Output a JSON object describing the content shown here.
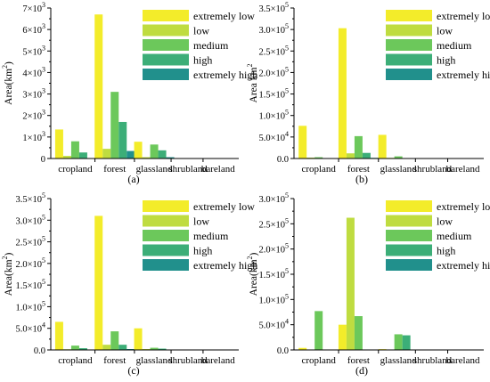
{
  "legend": {
    "labels": [
      "extremely low",
      "low",
      "medium",
      "high",
      "extremely high"
    ],
    "colors": [
      "#f3ec2a",
      "#bfdc40",
      "#6cc85b",
      "#3cae78",
      "#21908c"
    ]
  },
  "chart_data": [
    {
      "type": "bar",
      "panel_label": "(a)",
      "ylabel": "Area(km",
      "ylabel_exp": "2",
      "ylabel_close": ")",
      "ylim": [
        0,
        7000
      ],
      "yticks": [
        0,
        1000,
        2000,
        3000,
        4000,
        5000,
        6000,
        7000
      ],
      "ytick_labels": [
        {
          "base": "0",
          "exp": ""
        },
        {
          "base": "1×10",
          "exp": "3"
        },
        {
          "base": "2×10",
          "exp": "3"
        },
        {
          "base": "3×10",
          "exp": "3"
        },
        {
          "base": "4×10",
          "exp": "3"
        },
        {
          "base": "5×10",
          "exp": "3"
        },
        {
          "base": "6×10",
          "exp": "3"
        },
        {
          "base": "7×10",
          "exp": "3"
        }
      ],
      "categories": [
        "cropland",
        "forest",
        "glassland",
        "shrubland",
        "bareland"
      ],
      "series": [
        {
          "name": "extremely low",
          "values": [
            1350,
            6700,
            780,
            0,
            0
          ]
        },
        {
          "name": "low",
          "values": [
            120,
            450,
            60,
            0,
            0
          ]
        },
        {
          "name": "medium",
          "values": [
            800,
            3100,
            650,
            0,
            0
          ]
        },
        {
          "name": "high",
          "values": [
            280,
            1700,
            380,
            0,
            0
          ]
        },
        {
          "name": "extremely high",
          "values": [
            20,
            350,
            60,
            0,
            0
          ]
        }
      ]
    },
    {
      "type": "bar",
      "panel_label": "(b)",
      "ylabel": "Area km",
      "ylabel_exp": "2",
      "ylabel_close": "",
      "ylim": [
        0,
        350000
      ],
      "yticks": [
        0,
        50000,
        100000,
        150000,
        200000,
        250000,
        300000,
        350000
      ],
      "ytick_labels": [
        {
          "base": "0.0",
          "exp": ""
        },
        {
          "base": "5.0×10",
          "exp": "4"
        },
        {
          "base": "1.0×10",
          "exp": "5"
        },
        {
          "base": "1.5×10",
          "exp": "5"
        },
        {
          "base": "2.0×10",
          "exp": "5"
        },
        {
          "base": "2.5×10",
          "exp": "5"
        },
        {
          "base": "3.0×10",
          "exp": "5"
        },
        {
          "base": "3.5×10",
          "exp": "5"
        }
      ],
      "categories": [
        "cropland",
        "forest",
        "glassland",
        "shrubland",
        "bareland"
      ],
      "series": [
        {
          "name": "extremely low",
          "values": [
            76000,
            303000,
            55000,
            0,
            0
          ]
        },
        {
          "name": "low",
          "values": [
            2000,
            12000,
            1500,
            0,
            0
          ]
        },
        {
          "name": "medium",
          "values": [
            3000,
            52000,
            5000,
            0,
            0
          ]
        },
        {
          "name": "high",
          "values": [
            1000,
            13000,
            1000,
            0,
            0
          ]
        },
        {
          "name": "extremely high",
          "values": [
            0,
            1500,
            200,
            0,
            0
          ]
        }
      ]
    },
    {
      "type": "bar",
      "panel_label": "(c)",
      "ylabel": "Area(km",
      "ylabel_exp": "2",
      "ylabel_close": ")",
      "ylim": [
        0,
        350000
      ],
      "yticks": [
        0,
        50000,
        100000,
        150000,
        200000,
        250000,
        300000,
        350000
      ],
      "ytick_labels": [
        {
          "base": "0.0",
          "exp": ""
        },
        {
          "base": "5.0×10",
          "exp": "4"
        },
        {
          "base": "1.0×10",
          "exp": "5"
        },
        {
          "base": "1.5×10",
          "exp": "5"
        },
        {
          "base": "2.0×10",
          "exp": "5"
        },
        {
          "base": "2.5×10",
          "exp": "5"
        },
        {
          "base": "3.0×10",
          "exp": "5"
        },
        {
          "base": "3.5×10",
          "exp": "5"
        }
      ],
      "categories": [
        "cropland",
        "forest",
        "glassland",
        "shrubland",
        "bareland"
      ],
      "series": [
        {
          "name": "extremely low",
          "values": [
            65000,
            310000,
            50000,
            0,
            0
          ]
        },
        {
          "name": "low",
          "values": [
            1500,
            12000,
            2000,
            0,
            0
          ]
        },
        {
          "name": "medium",
          "values": [
            10000,
            43000,
            5000,
            0,
            0
          ]
        },
        {
          "name": "high",
          "values": [
            4000,
            12000,
            3000,
            0,
            0
          ]
        },
        {
          "name": "extremely high",
          "values": [
            0,
            2000,
            500,
            0,
            0
          ]
        }
      ]
    },
    {
      "type": "bar",
      "panel_label": "(d)",
      "ylabel": "Area(km",
      "ylabel_exp": "2",
      "ylabel_close": ")",
      "ylim": [
        0,
        300000
      ],
      "yticks": [
        0,
        50000,
        100000,
        150000,
        200000,
        250000,
        300000
      ],
      "ytick_labels": [
        {
          "base": "0.0",
          "exp": ""
        },
        {
          "base": "5.0×10",
          "exp": "4"
        },
        {
          "base": "1.0×10",
          "exp": "5"
        },
        {
          "base": "1.5×10",
          "exp": "5"
        },
        {
          "base": "2.0×10",
          "exp": "5"
        },
        {
          "base": "2.5×10",
          "exp": "5"
        },
        {
          "base": "3.0×10",
          "exp": "5"
        }
      ],
      "categories": [
        "cropland",
        "forest",
        "glassland",
        "shrubland",
        "bareland"
      ],
      "series": [
        {
          "name": "extremely low",
          "values": [
            4000,
            50000,
            1500,
            0,
            0
          ]
        },
        {
          "name": "low",
          "values": [
            0,
            262000,
            0,
            0,
            0
          ]
        },
        {
          "name": "medium",
          "values": [
            77000,
            67000,
            31000,
            0,
            0
          ]
        },
        {
          "name": "high",
          "values": [
            0,
            0,
            29000,
            0,
            0
          ]
        },
        {
          "name": "extremely high",
          "values": [
            0,
            0,
            0,
            0,
            0
          ]
        }
      ]
    }
  ]
}
